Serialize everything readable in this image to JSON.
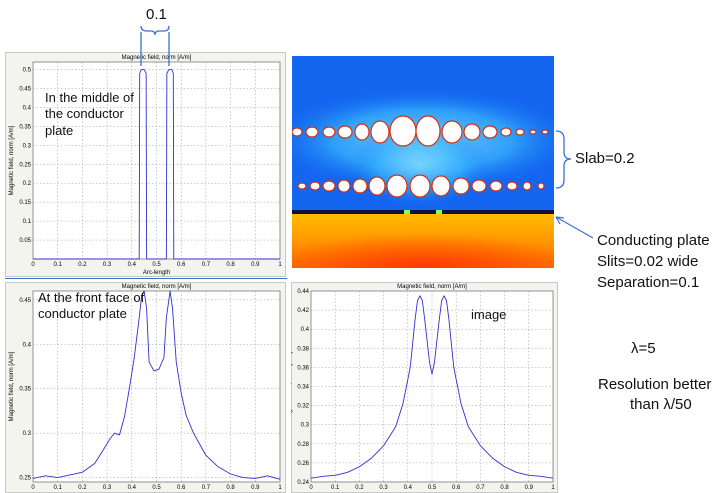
{
  "annotations": {
    "gap_label": "0.1",
    "slab_label": "Slab=0.2",
    "plate_label": "Conducting plate",
    "slits_label": "Slits=0.02 wide",
    "separation_label": "Separation=0.1",
    "lambda_label": "λ=5",
    "resolution_line1": "Resolution better",
    "resolution_line2": "than λ/50"
  },
  "chart_data": [
    {
      "type": "line",
      "title": "Magnetic field, norm [A/m]",
      "xlabel": "Arc-length",
      "ylabel": "Magnetic field, norm [A/m]",
      "annotation": "In the middle of the conductor plate",
      "xlim": [
        0,
        1
      ],
      "ylim": [
        0,
        0.52
      ],
      "xticks": [
        "0",
        "0.1",
        "0.2",
        "0.3",
        "0.4",
        "0.5",
        "0.6",
        "0.7",
        "0.8",
        "0.9",
        "1"
      ],
      "yticks": [
        0.05,
        0.1,
        0.15,
        0.2,
        0.25,
        0.3,
        0.35,
        0.4,
        0.45,
        0.5
      ],
      "ytick_labels": [
        "0.05",
        "0.1",
        "0.15",
        "0.2",
        "0.25",
        "0.3",
        "0.35",
        "0.4",
        "0.45",
        "0.5"
      ],
      "grid": true,
      "series": [
        {
          "color": "#3030d0",
          "x": [
            0,
            0.43,
            0.432,
            0.438,
            0.45,
            0.458,
            0.46,
            0.54,
            0.542,
            0.55,
            0.562,
            0.568,
            0.57,
            1
          ],
          "y": [
            0,
            0,
            0.49,
            0.5,
            0.5,
            0.49,
            0,
            0,
            0.49,
            0.5,
            0.5,
            0.49,
            0,
            0
          ]
        }
      ]
    },
    {
      "type": "line",
      "title": "Magnetic field, norm [A/m]",
      "xlabel": "",
      "ylabel": "Magnetic field, norm [A/m]",
      "annotation": "At the front face of conductor plate",
      "xlim": [
        0,
        1
      ],
      "ylim": [
        0.245,
        0.46
      ],
      "xticks": [
        "0",
        "0.1",
        "0.2",
        "0.3",
        "0.4",
        "0.5",
        "0.6",
        "0.7",
        "0.8",
        "0.9",
        "1"
      ],
      "yticks": [
        0.25,
        0.3,
        0.35,
        0.4,
        0.45
      ],
      "ytick_labels": [
        "0.25",
        "0.3",
        "0.35",
        "0.4",
        "0.45"
      ],
      "grid": true,
      "series": [
        {
          "color": "#3030d0",
          "x": [
            0,
            0.05,
            0.1,
            0.15,
            0.2,
            0.25,
            0.28,
            0.31,
            0.33,
            0.35,
            0.37,
            0.39,
            0.41,
            0.43,
            0.44,
            0.45,
            0.46,
            0.47,
            0.49,
            0.51,
            0.53,
            0.54,
            0.555,
            0.565,
            0.58,
            0.6,
            0.62,
            0.65,
            0.7,
            0.75,
            0.8,
            0.85,
            0.9,
            0.95,
            1
          ],
          "y": [
            0.249,
            0.252,
            0.25,
            0.253,
            0.256,
            0.266,
            0.279,
            0.293,
            0.3,
            0.298,
            0.318,
            0.35,
            0.385,
            0.43,
            0.455,
            0.46,
            0.44,
            0.38,
            0.37,
            0.372,
            0.385,
            0.43,
            0.46,
            0.44,
            0.38,
            0.345,
            0.32,
            0.3,
            0.275,
            0.262,
            0.254,
            0.25,
            0.249,
            0.252,
            0.248
          ]
        }
      ]
    },
    {
      "type": "line",
      "title": "Magnetic field, norm [A/m]",
      "xlabel": "",
      "ylabel": "Magnetic field, norm [A/m]",
      "annotation": "image",
      "xlim": [
        0,
        1
      ],
      "ylim": [
        0.24,
        0.44
      ],
      "xticks": [
        "0",
        "0.1",
        "0.2",
        "0.3",
        "0.4",
        "0.5",
        "0.6",
        "0.7",
        "0.8",
        "0.9",
        "1"
      ],
      "yticks": [
        0.24,
        0.26,
        0.28,
        0.3,
        0.32,
        0.34,
        0.36,
        0.38,
        0.4,
        0.42,
        0.44
      ],
      "ytick_labels": [
        "0.24",
        "0.26",
        "0.28",
        "0.3",
        "0.32",
        "0.34",
        "0.36",
        "0.38",
        "0.4",
        "0.42",
        "0.44"
      ],
      "grid": true,
      "series": [
        {
          "color": "#3030d0",
          "x": [
            0,
            0.05,
            0.1,
            0.15,
            0.2,
            0.25,
            0.3,
            0.35,
            0.38,
            0.41,
            0.43,
            0.44,
            0.45,
            0.46,
            0.47,
            0.49,
            0.5,
            0.51,
            0.53,
            0.54,
            0.55,
            0.56,
            0.57,
            0.59,
            0.62,
            0.65,
            0.7,
            0.75,
            0.8,
            0.85,
            0.9,
            0.95,
            1
          ],
          "y": [
            0.244,
            0.246,
            0.247,
            0.25,
            0.256,
            0.265,
            0.278,
            0.298,
            0.322,
            0.36,
            0.41,
            0.43,
            0.435,
            0.43,
            0.41,
            0.365,
            0.353,
            0.365,
            0.41,
            0.43,
            0.435,
            0.43,
            0.41,
            0.36,
            0.322,
            0.298,
            0.278,
            0.265,
            0.256,
            0.25,
            0.247,
            0.246,
            0.244
          ]
        }
      ]
    }
  ]
}
